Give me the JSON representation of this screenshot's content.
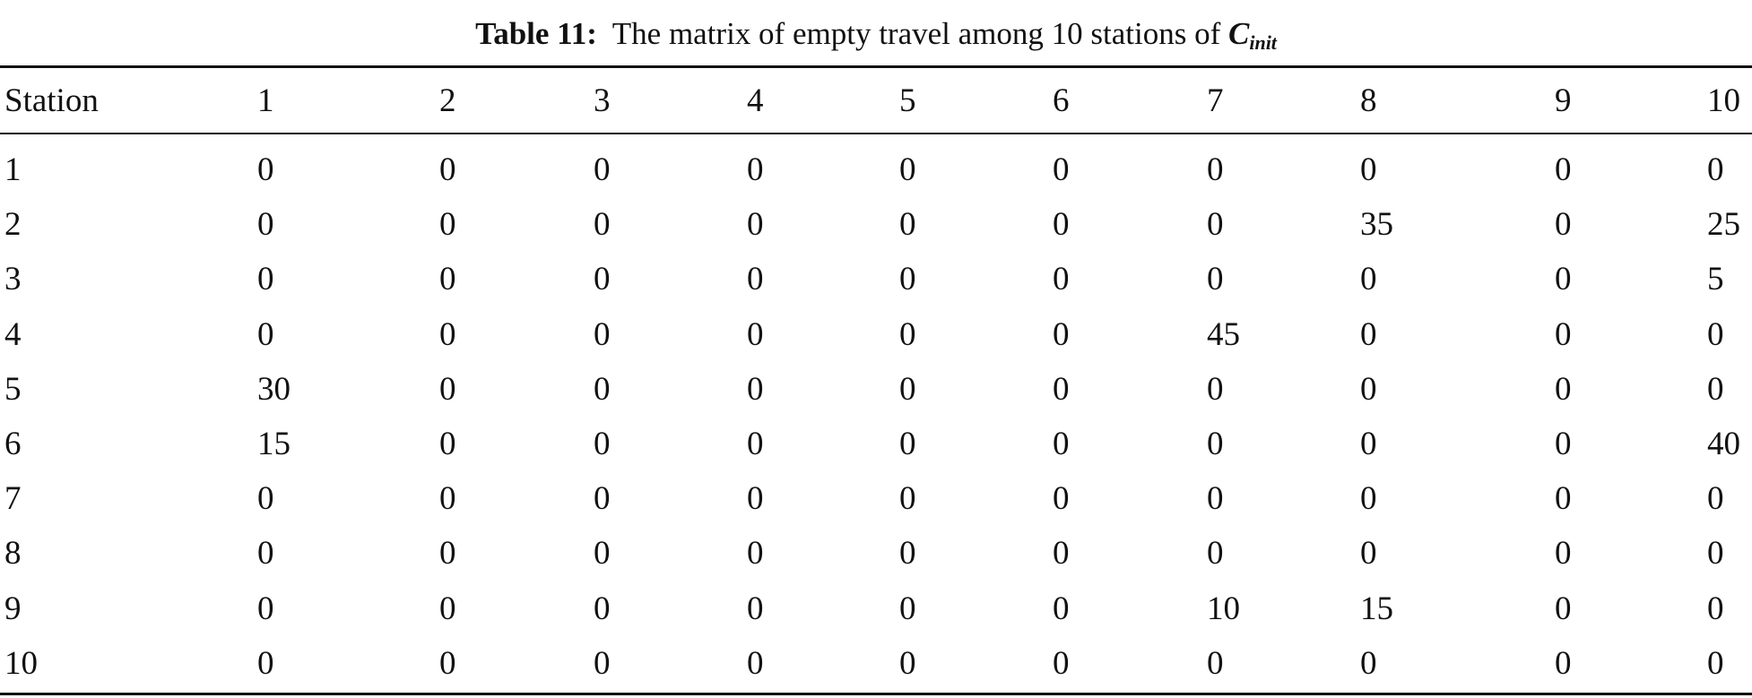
{
  "caption": {
    "label": "Table 11:",
    "text": "The matrix of empty travel among 10 stations of",
    "symbol": "C",
    "subscript": "init"
  },
  "table": {
    "headers": [
      "Station",
      "1",
      "2",
      "3",
      "4",
      "5",
      "6",
      "7",
      "8",
      "9",
      "10"
    ],
    "rows": [
      [
        "1",
        "0",
        "0",
        "0",
        "0",
        "0",
        "0",
        "0",
        "0",
        "0",
        "0"
      ],
      [
        "2",
        "0",
        "0",
        "0",
        "0",
        "0",
        "0",
        "0",
        "35",
        "0",
        "25"
      ],
      [
        "3",
        "0",
        "0",
        "0",
        "0",
        "0",
        "0",
        "0",
        "0",
        "0",
        "5"
      ],
      [
        "4",
        "0",
        "0",
        "0",
        "0",
        "0",
        "0",
        "45",
        "0",
        "0",
        "0"
      ],
      [
        "5",
        "30",
        "0",
        "0",
        "0",
        "0",
        "0",
        "0",
        "0",
        "0",
        "0"
      ],
      [
        "6",
        "15",
        "0",
        "0",
        "0",
        "0",
        "0",
        "0",
        "0",
        "0",
        "40"
      ],
      [
        "7",
        "0",
        "0",
        "0",
        "0",
        "0",
        "0",
        "0",
        "0",
        "0",
        "0"
      ],
      [
        "8",
        "0",
        "0",
        "0",
        "0",
        "0",
        "0",
        "0",
        "0",
        "0",
        "0"
      ],
      [
        "9",
        "0",
        "0",
        "0",
        "0",
        "0",
        "0",
        "10",
        "15",
        "0",
        "0"
      ],
      [
        "10",
        "0",
        "0",
        "0",
        "0",
        "0",
        "0",
        "0",
        "0",
        "0",
        "0"
      ]
    ]
  }
}
